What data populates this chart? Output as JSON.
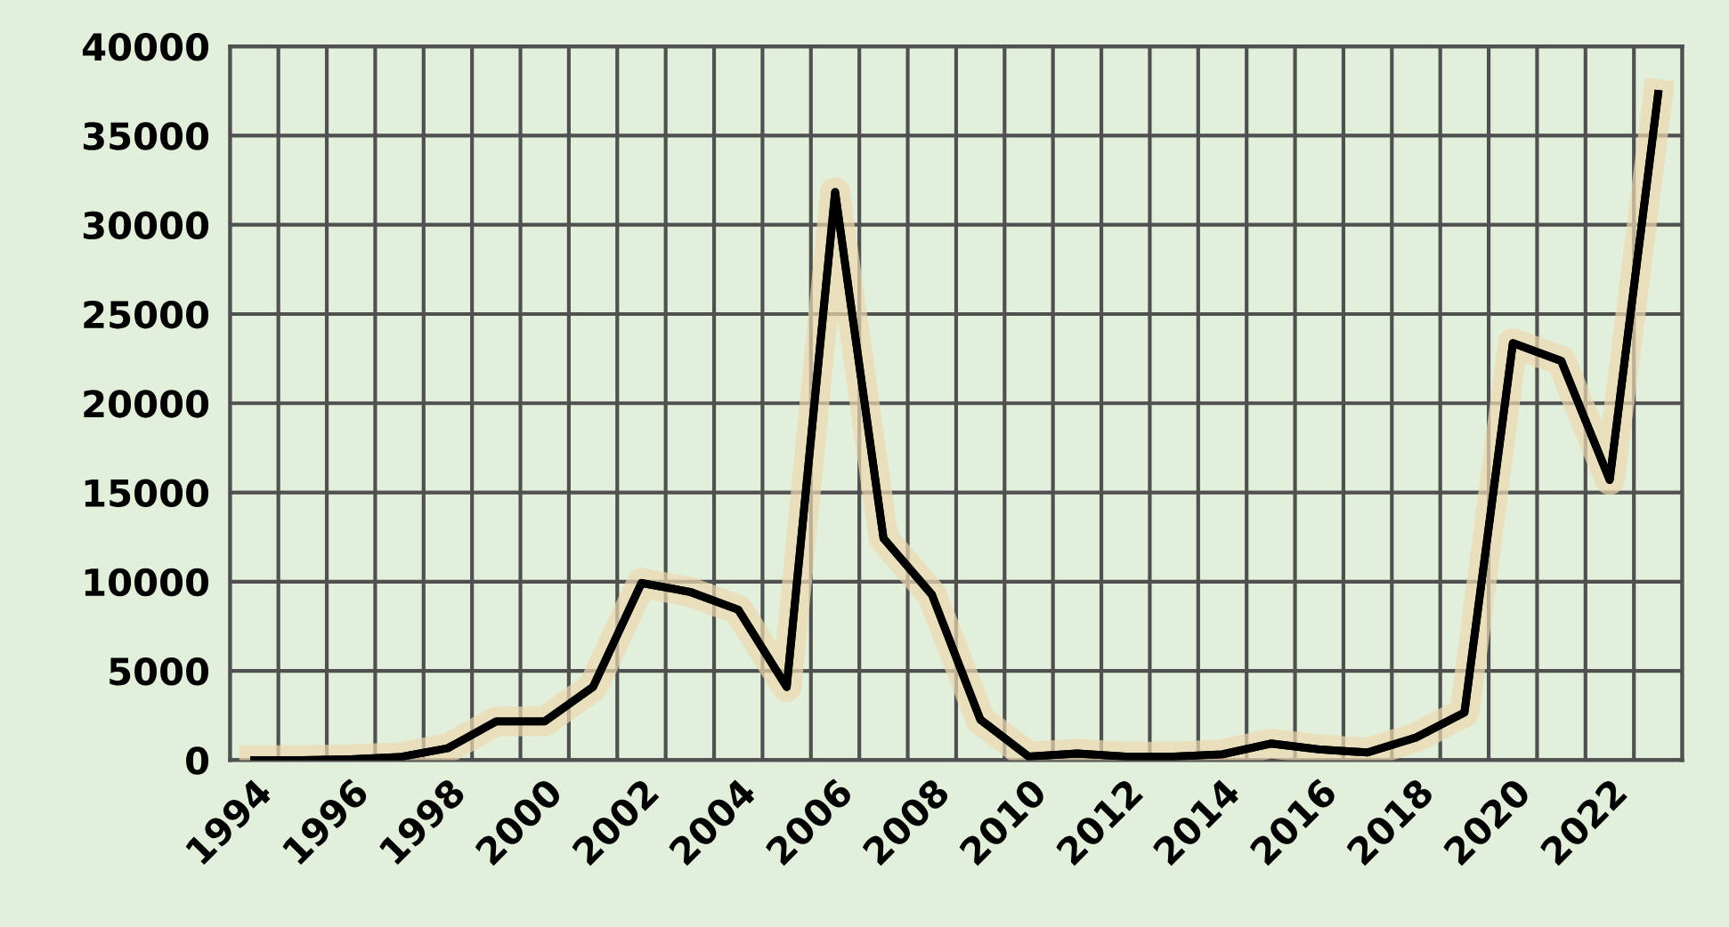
{
  "chart_data": {
    "type": "line",
    "categories": [
      "1994",
      null,
      "1996",
      null,
      "1998",
      null,
      "2000",
      null,
      "2002",
      null,
      "2004",
      null,
      "2006",
      null,
      "2008",
      null,
      "2010",
      null,
      "2012",
      null,
      "2014",
      null,
      "2016",
      null,
      "2018",
      null,
      "2020",
      null,
      "2022",
      null
    ],
    "series": [
      {
        "color": "#000000",
        "values": [
          0,
          0,
          50,
          170,
          670,
          2170,
          2170,
          4100,
          9930,
          9430,
          8430,
          4100,
          31830,
          12430,
          9270,
          2270,
          200,
          370,
          200,
          200,
          330,
          930,
          600,
          430,
          1270,
          2670,
          23370,
          22370,
          15700,
          37330
        ]
      }
    ],
    "ylim": [
      0,
      40000
    ],
    "yticks": [
      0,
      5000,
      10000,
      15000,
      20000,
      25000,
      30000,
      35000,
      40000
    ],
    "grid": true,
    "marker": "none",
    "line_style": "solid",
    "legend": false
  }
}
